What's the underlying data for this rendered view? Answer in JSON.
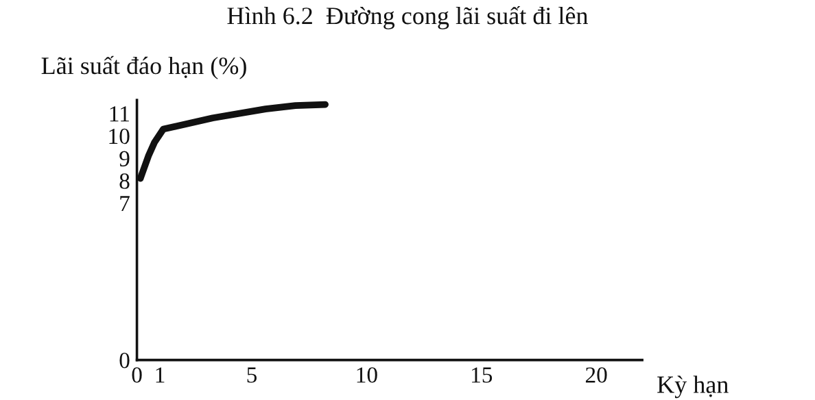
{
  "chart_data": {
    "type": "line",
    "title": "Hình 6.2  Đường cong lãi suất đi lên",
    "xlabel": "Kỳ hạn",
    "ylabel": "Lãi suất đáo hạn (%)",
    "x": [
      0.15,
      0.5,
      0.76,
      1.15,
      3.3,
      5.6,
      6.9,
      8.2
    ],
    "series": [
      {
        "color": "#111111",
        "values": [
          8.1,
          9.1,
          9.7,
          10.3,
          10.8,
          11.2,
          11.35,
          11.4
        ]
      }
    ],
    "xlim": [
      0,
      22
    ],
    "xticks": [
      0,
      1,
      5,
      10,
      15,
      20
    ],
    "ylim": [
      0,
      11.6
    ],
    "yticks": [
      0,
      7,
      8,
      9,
      10,
      11
    ],
    "grid": false,
    "legend": false,
    "marker": "none",
    "line_style": "solid"
  }
}
